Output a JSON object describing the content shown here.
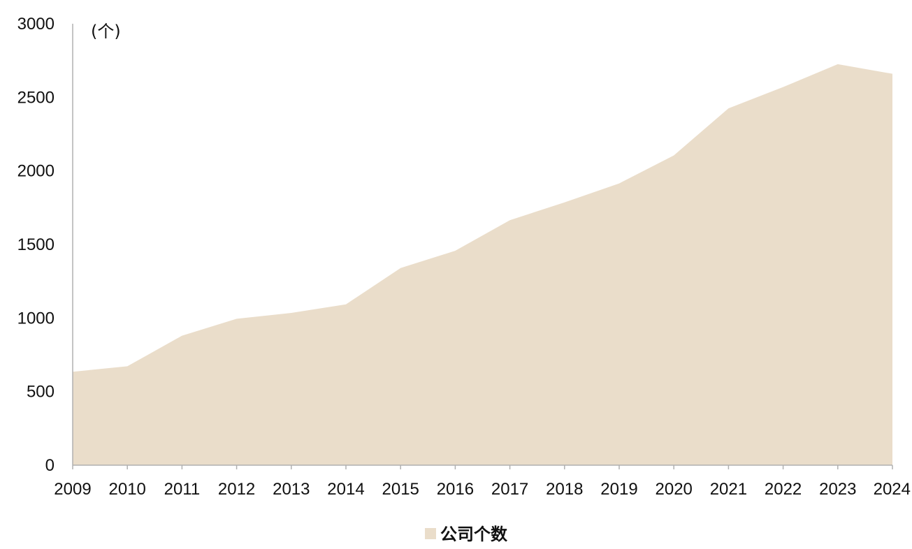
{
  "chart_data": {
    "type": "area",
    "unit_label": "(个)",
    "categories": [
      "2009",
      "2010",
      "2011",
      "2012",
      "2013",
      "2014",
      "2015",
      "2016",
      "2017",
      "2018",
      "2019",
      "2020",
      "2021",
      "2022",
      "2023",
      "2024"
    ],
    "series": [
      {
        "name": "公司个数",
        "color": "#eaddca",
        "values": [
          635,
          672,
          880,
          995,
          1035,
          1093,
          1340,
          1457,
          1665,
          1786,
          1915,
          2105,
          2425,
          2570,
          2725,
          2660
        ]
      }
    ],
    "ylim": [
      0,
      3000
    ],
    "yticks": [
      0,
      500,
      1000,
      1500,
      2000,
      2500,
      3000
    ],
    "grid": false,
    "legend": {
      "position": "bottom"
    },
    "colors": {
      "axis": "#b0b0b0",
      "text": "#111111"
    }
  }
}
